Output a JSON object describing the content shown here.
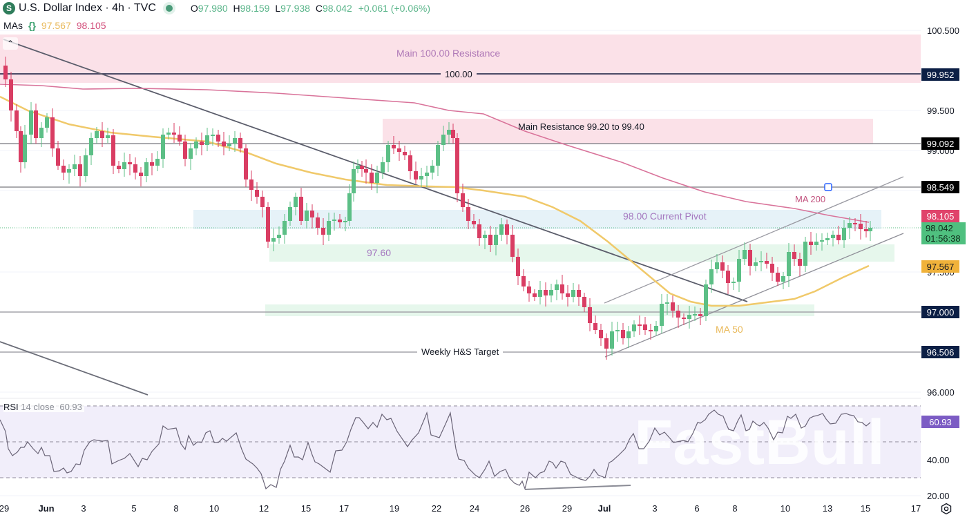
{
  "header": {
    "symbol_icon": "S",
    "title": "U.S. Dollar Index · 4h · TVC",
    "status_dot": "market-open-dot",
    "ohlc": {
      "o_label": "O",
      "o": "97.980",
      "h_label": "H",
      "h": "98.159",
      "l_label": "L",
      "l": "97.938",
      "c_label": "C",
      "c": "98.042",
      "change": "+0.061 (+0.06%)"
    }
  },
  "indicators": {
    "mas_label": "MAs",
    "ma50_value": "97.567",
    "ma200_value": "98.105",
    "rsi_label": "RSI",
    "rsi_params": "14 close",
    "rsi_value": "60.93"
  },
  "annotations": {
    "main_100_resistance": "Main 100.00 Resistance",
    "level_100": "100.00",
    "main_resistance": "Main Resistance 99.20 to 99.40",
    "ma200": "MA 200",
    "pivot": "98.00 Current Pivot",
    "level_9760": "97.60",
    "ma50": "MA 50",
    "hs_target": "Weekly H&S Target"
  },
  "price_axis": {
    "ticks": [
      "100.500",
      "99.500",
      "99.000",
      "98.500",
      "97.500",
      "97.000",
      "96.000"
    ],
    "tags": [
      {
        "value": "99.952",
        "color": "#0c1f45"
      },
      {
        "value": "99.092",
        "color": "#000000"
      },
      {
        "value": "98.549",
        "color": "#000000"
      },
      {
        "value": "98.105",
        "color": "#e0436b"
      },
      {
        "value": "98.042",
        "color": "#4fc07f"
      },
      {
        "value": "01:56:38",
        "color": "#4fc07f"
      },
      {
        "value": "97.567",
        "color": "#f0b23a"
      },
      {
        "value": "97.000",
        "color": "#0c1f45"
      },
      {
        "value": "96.506",
        "color": "#0c1f45"
      }
    ]
  },
  "rsi_axis": {
    "ticks": [
      "40.00",
      "20.00"
    ],
    "tag": "60.93",
    "tag_color": "#7c5cc4"
  },
  "time_axis": [
    "29",
    "Jun",
    "3",
    "5",
    "8",
    "10",
    "12",
    "15",
    "17",
    "19",
    "22",
    "24",
    "26",
    "29",
    "Jul",
    "3",
    "6",
    "8",
    "10",
    "13",
    "15",
    "17"
  ],
  "watermark": "FastBull",
  "colors": {
    "up": "#5cbf86",
    "down": "#d93d63",
    "ma50": "#f0c96a",
    "ma200": "#d9739a",
    "resistance_zone": "#fbe1e8",
    "pivot_zone": "#e6f2f8",
    "support_zone": "#e6f7ec",
    "rsi_band": "#f1eefa",
    "rsi_line": "#6a6477"
  },
  "chart_data": {
    "type": "candlestick",
    "title": "U.S. Dollar Index · 4h · TVC",
    "timeframe": "4h",
    "x_labels": [
      "29",
      "Jun",
      "3",
      "5",
      "8",
      "10",
      "12",
      "15",
      "17",
      "19",
      "22",
      "24",
      "26",
      "29",
      "Jul",
      "3",
      "6",
      "8",
      "10",
      "13",
      "15",
      "17"
    ],
    "ylim": [
      95.9,
      100.6
    ],
    "last": {
      "open": 97.98,
      "high": 98.159,
      "low": 97.938,
      "close": 98.042,
      "change": 0.061,
      "change_pct": 0.06
    },
    "approx_closes_by_date": [
      {
        "date": "29",
        "close": 99.9
      },
      {
        "date": "Jun",
        "close": 99.2
      },
      {
        "date": "3",
        "close": 99.1
      },
      {
        "date": "5",
        "close": 98.9
      },
      {
        "date": "8",
        "close": 99.1
      },
      {
        "date": "10",
        "close": 99.0
      },
      {
        "date": "12",
        "close": 97.7
      },
      {
        "date": "15",
        "close": 97.9
      },
      {
        "date": "17",
        "close": 98.5
      },
      {
        "date": "19",
        "close": 98.9
      },
      {
        "date": "22",
        "close": 99.3
      },
      {
        "date": "24",
        "close": 97.9
      },
      {
        "date": "26",
        "close": 97.1
      },
      {
        "date": "29",
        "close": 97.0
      },
      {
        "date": "Jul",
        "close": 96.6
      },
      {
        "date": "3",
        "close": 96.9
      },
      {
        "date": "6",
        "close": 97.3
      },
      {
        "date": "8",
        "close": 97.7
      },
      {
        "date": "10",
        "close": 97.5
      },
      {
        "date": "13",
        "close": 97.9
      },
      {
        "date": "15",
        "close": 98.04
      }
    ],
    "series": [
      {
        "name": "MA 50",
        "last": 97.567
      },
      {
        "name": "MA 200",
        "last": 98.105
      },
      {
        "name": "RSI 14 close",
        "last": 60.93,
        "ylim": [
          20,
          80
        ],
        "bands": [
          30,
          50,
          70
        ]
      }
    ],
    "levels": [
      {
        "name": "Main 100.00 Resistance",
        "value": 100.0,
        "zone": [
          99.85,
          100.45
        ]
      },
      {
        "name": "Main Resistance 99.20 to 99.40",
        "zone": [
          99.09,
          99.4
        ]
      },
      {
        "name": "98.549",
        "value": 98.549
      },
      {
        "name": "98.00 Current Pivot",
        "zone": [
          97.98,
          98.2
        ]
      },
      {
        "name": "97.60",
        "zone": [
          97.5,
          97.71
        ]
      },
      {
        "name": "97.000",
        "value": 97.0
      },
      {
        "name": "Weekly H&S Target",
        "value": 96.506
      }
    ]
  }
}
